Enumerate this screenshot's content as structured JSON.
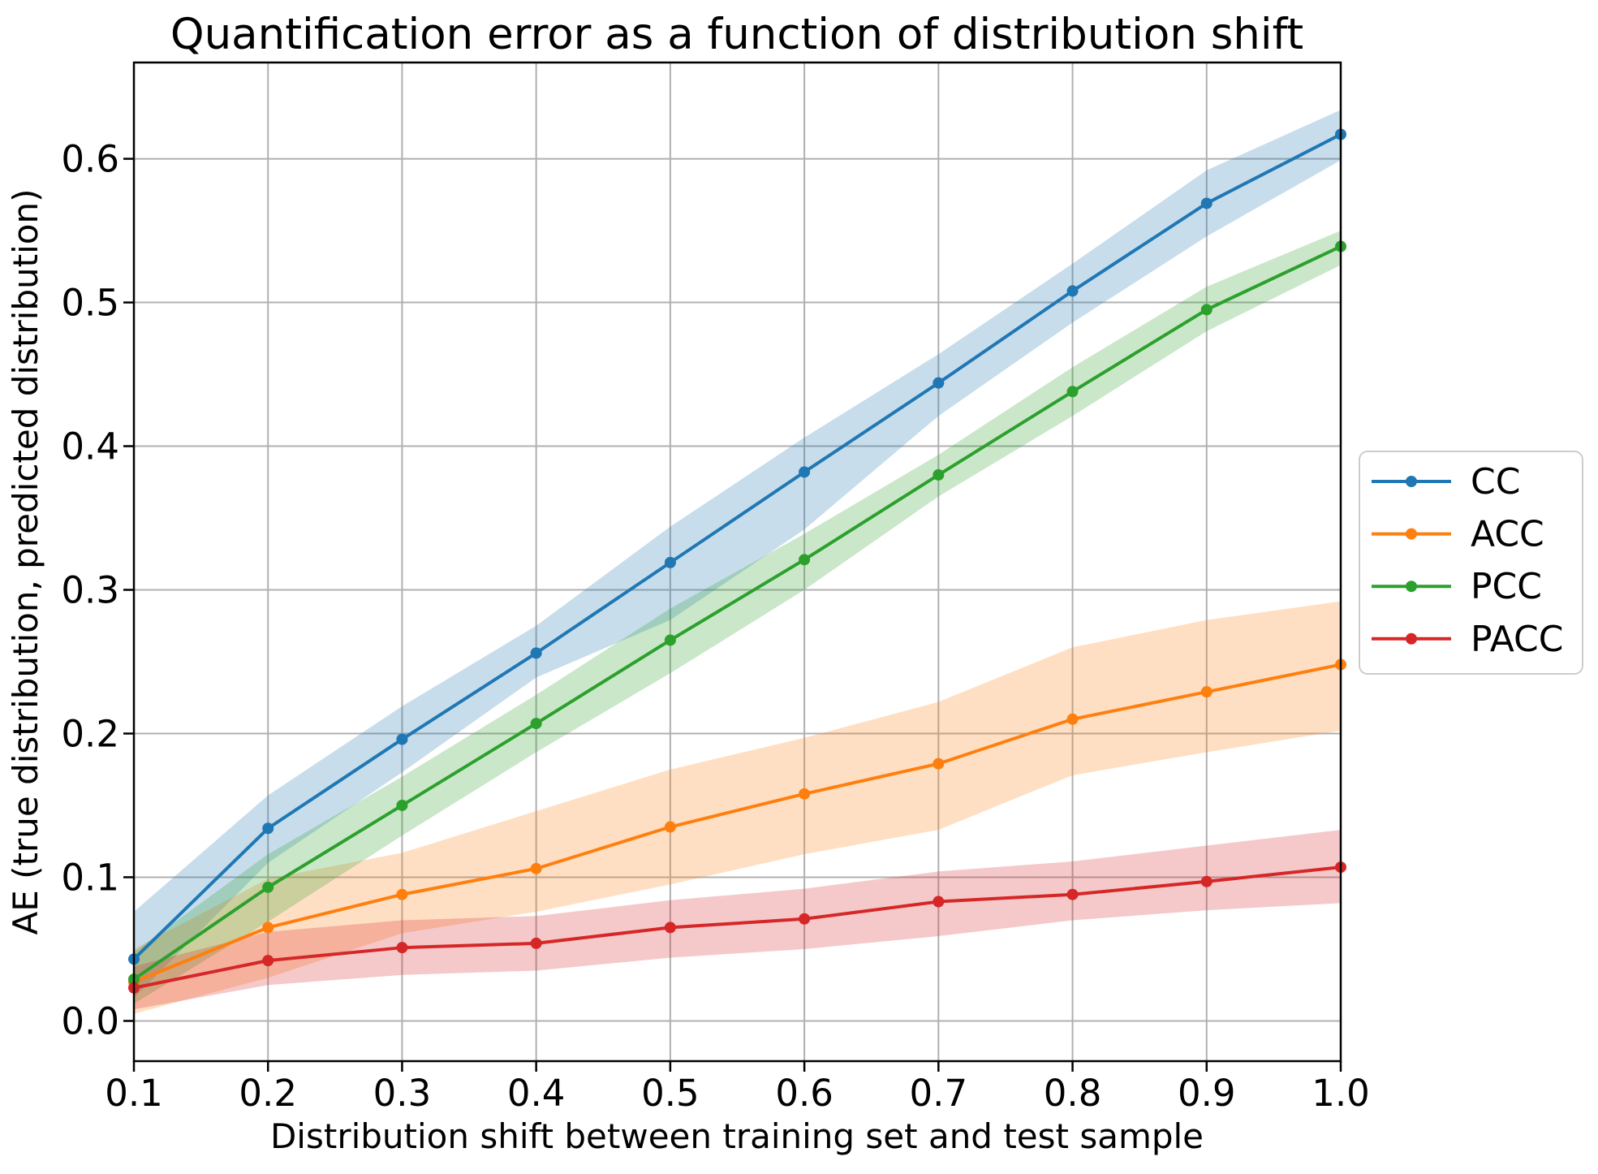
{
  "chart_data": {
    "type": "line",
    "title": "Quantification error as a function of distribution shift",
    "xlabel": "Distribution shift between training set and test sample",
    "ylabel": "AE (true distribution, predicted distribution)",
    "x": [
      0.1,
      0.2,
      0.3,
      0.4,
      0.5,
      0.6,
      0.7,
      0.8,
      0.9,
      1.0
    ],
    "xlim": [
      0.1,
      1.0
    ],
    "ylim": [
      -0.028,
      0.667
    ],
    "xticks": [
      0.1,
      0.2,
      0.3,
      0.4,
      0.5,
      0.6,
      0.7,
      0.8,
      0.9,
      1.0
    ],
    "yticks": [
      0.0,
      0.1,
      0.2,
      0.3,
      0.4,
      0.5,
      0.6
    ],
    "grid": true,
    "legend_position": "outside-right",
    "series": [
      {
        "name": "CC",
        "color": "#1f77b4",
        "values": [
          0.043,
          0.134,
          0.196,
          0.256,
          0.319,
          0.382,
          0.444,
          0.508,
          0.569,
          0.617
        ],
        "band_lower": [
          0.016,
          0.11,
          0.173,
          0.239,
          0.279,
          0.342,
          0.421,
          0.486,
          0.546,
          0.599
        ],
        "band_upper": [
          0.076,
          0.157,
          0.219,
          0.275,
          0.344,
          0.406,
          0.464,
          0.527,
          0.592,
          0.634
        ]
      },
      {
        "name": "ACC",
        "color": "#ff7f0e",
        "values": [
          0.027,
          0.065,
          0.088,
          0.106,
          0.135,
          0.158,
          0.179,
          0.21,
          0.229,
          0.248
        ],
        "band_lower": [
          0.005,
          0.03,
          0.061,
          0.076,
          0.095,
          0.116,
          0.133,
          0.171,
          0.187,
          0.202
        ],
        "band_upper": [
          0.05,
          0.099,
          0.117,
          0.146,
          0.175,
          0.197,
          0.222,
          0.26,
          0.279,
          0.292
        ]
      },
      {
        "name": "PCC",
        "color": "#2ca02c",
        "values": [
          0.029,
          0.093,
          0.15,
          0.207,
          0.265,
          0.321,
          0.38,
          0.438,
          0.495,
          0.539
        ],
        "band_lower": [
          0.012,
          0.069,
          0.129,
          0.187,
          0.242,
          0.3,
          0.365,
          0.421,
          0.48,
          0.526
        ],
        "band_upper": [
          0.048,
          0.116,
          0.17,
          0.227,
          0.287,
          0.339,
          0.394,
          0.455,
          0.511,
          0.55
        ]
      },
      {
        "name": "PACC",
        "color": "#d62728",
        "values": [
          0.023,
          0.042,
          0.051,
          0.054,
          0.065,
          0.071,
          0.083,
          0.088,
          0.097,
          0.107
        ],
        "band_lower": [
          0.008,
          0.025,
          0.032,
          0.035,
          0.044,
          0.05,
          0.059,
          0.07,
          0.077,
          0.082
        ],
        "band_upper": [
          0.038,
          0.062,
          0.07,
          0.073,
          0.084,
          0.092,
          0.104,
          0.111,
          0.122,
          0.133
        ]
      }
    ]
  }
}
